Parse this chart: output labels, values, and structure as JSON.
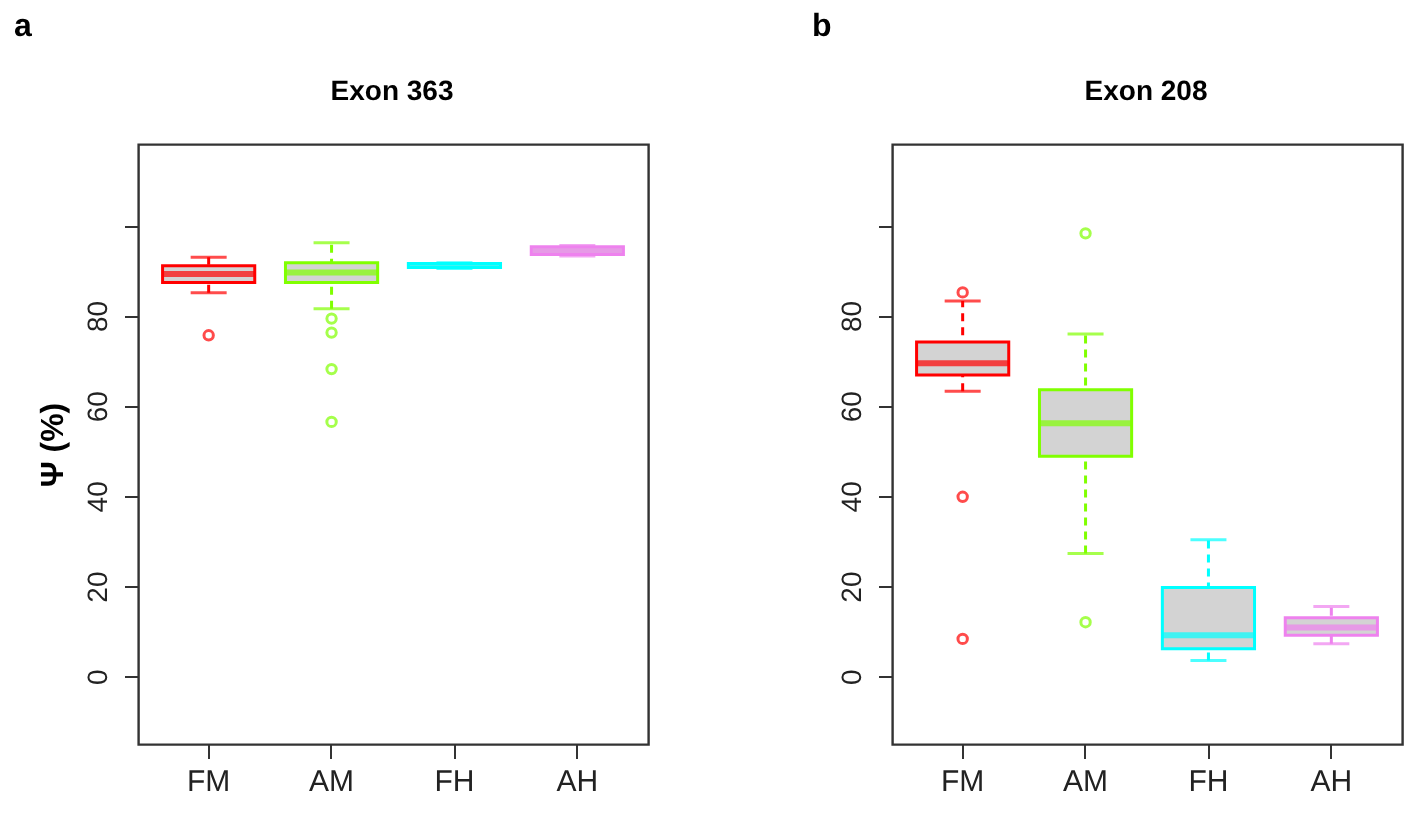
{
  "chart_data": [
    {
      "type": "box",
      "title": "Exon 363",
      "ylabel": "Ψ (%)",
      "annotations": [
        "a"
      ],
      "categories": [
        "FM",
        "AM",
        "FH",
        "AH"
      ],
      "colors": [
        "#ff0000",
        "#80ff00",
        "#00ffff",
        "#ee82ee"
      ],
      "marker": "circle",
      "line_style": "dashed",
      "ylim": [
        -15,
        118
      ],
      "yticks": [
        0,
        20,
        40,
        60,
        80,
        {
          "value": 100,
          "label": null
        }
      ],
      "boxes": [
        {
          "low": 85,
          "q1": 87.3,
          "median": 89.2,
          "q3": 91,
          "high": 92.9,
          "outliers": [
            75.6
          ]
        },
        {
          "low": 81.5,
          "q1": 87.3,
          "median": 89.5,
          "q3": 91.7,
          "high": 96.1,
          "outliers": [
            79.3,
            76.2,
            68.1,
            56.4
          ]
        },
        {
          "low": 90.4,
          "q1": 90.6,
          "median": 91,
          "q3": 91.5,
          "high": 91.7
        },
        {
          "low": 93.2,
          "q1": 93.5,
          "median": 94.3,
          "q3": 95.2,
          "high": 95.5
        }
      ]
    },
    {
      "type": "box",
      "title": "Exon 208",
      "annotations": [
        "b"
      ],
      "categories": [
        "FM",
        "AM",
        "FH",
        "AH"
      ],
      "colors": [
        "#ff0000",
        "#80ff00",
        "#00ffff",
        "#ee82ee"
      ],
      "marker": "circle",
      "line_style": "dashed",
      "ylim": [
        -15,
        118
      ],
      "yticks": [
        0,
        20,
        40,
        60,
        80,
        {
          "value": 100,
          "label": null
        }
      ],
      "boxes": [
        {
          "low": 63.2,
          "q1": 66.8,
          "median": 69.4,
          "q3": 74.1,
          "high": 83.2,
          "outliers": [
            85.1,
            39.8,
            8.3
          ]
        },
        {
          "low": 27.2,
          "q1": 48.8,
          "median": 56.1,
          "q3": 63.5,
          "high": 75.9,
          "outliers": [
            98.2,
            12
          ]
        },
        {
          "low": 3.5,
          "q1": 6.1,
          "median": 9.1,
          "q3": 19.7,
          "high": 30.3
        },
        {
          "low": 7.2,
          "q1": 9.1,
          "median": 10.8,
          "q3": 13,
          "high": 15.5
        }
      ]
    }
  ]
}
